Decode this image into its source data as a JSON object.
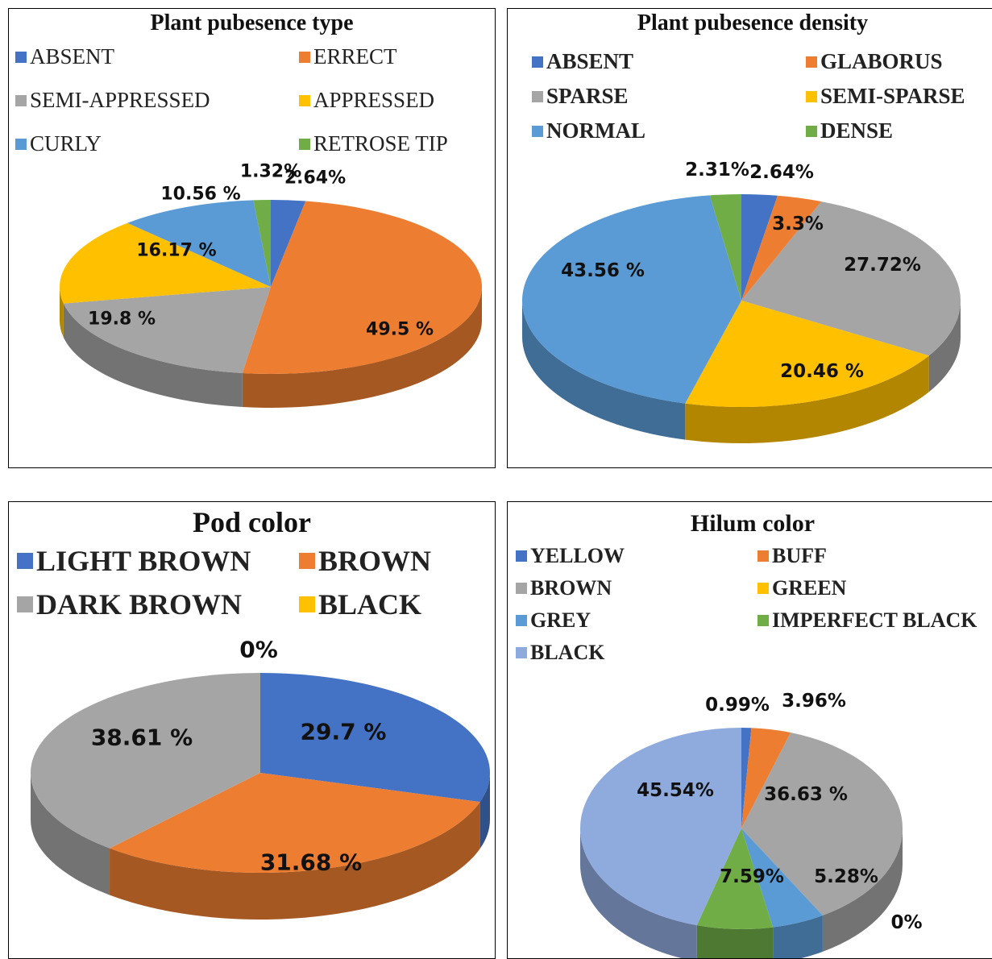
{
  "chart_data": [
    {
      "type": "pie",
      "title": "Plant pubesence type",
      "categories": [
        "ABSENT",
        "ERRECT",
        "SEMI-APPRESSED",
        "APPRESSED",
        "CURLY",
        "RETROSE TIP"
      ],
      "values": [
        2.64,
        49.5,
        19.8,
        16.17,
        10.56,
        1.32
      ],
      "data_labels": [
        "2.64%",
        "49.5 %",
        "19.8 %",
        "16.17 %",
        "10.56 %",
        "1.32%"
      ],
      "colors": [
        "#4472c4",
        "#ed7d31",
        "#a5a5a5",
        "#ffc000",
        "#5b9bd5",
        "#70ad47"
      ],
      "legend": "top"
    },
    {
      "type": "pie",
      "title": "Plant pubesence density",
      "categories": [
        "ABSENT",
        "GLABORUS",
        "SPARSE",
        "SEMI-SPARSE",
        "NORMAL",
        "DENSE"
      ],
      "values": [
        2.64,
        3.3,
        27.72,
        20.46,
        43.56,
        2.31
      ],
      "data_labels": [
        "2.64%",
        "3.3%",
        "27.72%",
        "20.46 %",
        "43.56 %",
        "2.31%"
      ],
      "colors": [
        "#4472c4",
        "#ed7d31",
        "#a5a5a5",
        "#ffc000",
        "#5b9bd5",
        "#70ad47"
      ],
      "legend": "top"
    },
    {
      "type": "pie",
      "title": "Pod color",
      "categories": [
        "LIGHT BROWN",
        "BROWN",
        "DARK BROWN",
        "BLACK"
      ],
      "values": [
        29.7,
        31.68,
        38.61,
        0
      ],
      "data_labels": [
        "29.7 %",
        "31.68 %",
        "38.61 %",
        "0%"
      ],
      "colors": [
        "#4472c4",
        "#ed7d31",
        "#a5a5a5",
        "#ffc000"
      ],
      "legend": "top"
    },
    {
      "type": "pie",
      "title": "Hilum color",
      "categories": [
        "YELLOW",
        "BUFF",
        "BROWN",
        "GREEN",
        "GREY",
        "IMPERFECT BLACK",
        "BLACK"
      ],
      "values": [
        0.99,
        3.96,
        36.63,
        0,
        5.28,
        7.59,
        45.54
      ],
      "data_labels": [
        "0.99%",
        "3.96%",
        "36.63 %",
        "0%",
        "5.28%",
        "7.59%",
        "45.54%"
      ],
      "colors": [
        "#4472c4",
        "#ed7d31",
        "#a5a5a5",
        "#ffc000",
        "#5b9bd5",
        "#70ad47",
        "#8faadc"
      ],
      "legend": "top"
    }
  ]
}
